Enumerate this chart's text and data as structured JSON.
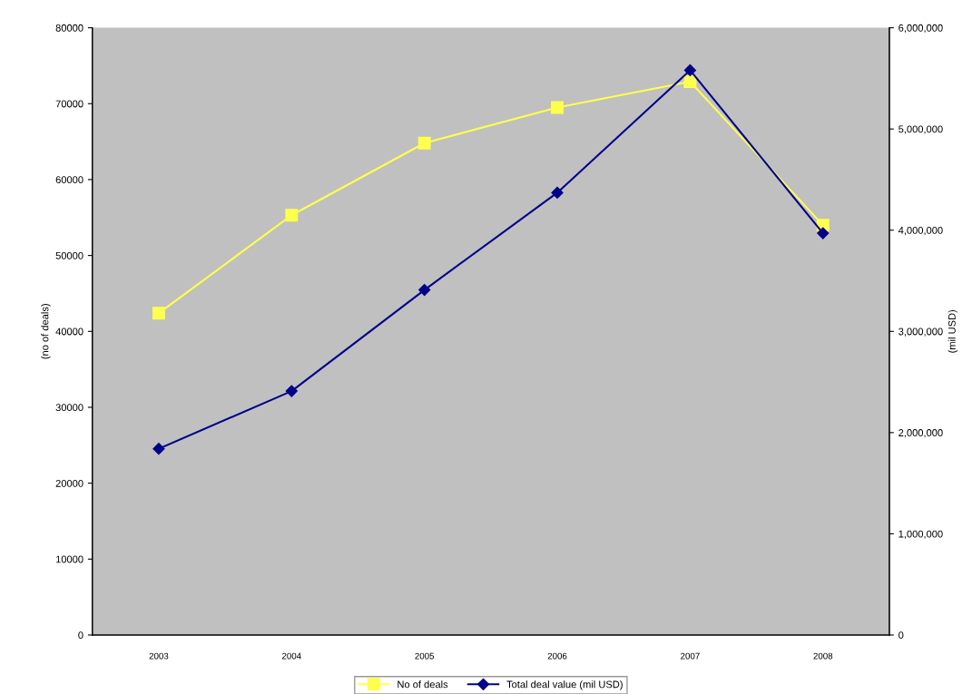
{
  "chart_data": {
    "type": "line",
    "ylabel": "(no of deals)",
    "y2label": "(mil USD)",
    "categories": [
      "2003",
      "2004",
      "2005",
      "2006",
      "2007",
      "2008"
    ],
    "series": [
      {
        "name": "No of deals",
        "color": "#ffff4d",
        "marker": "square",
        "values": [
          42400,
          55300,
          64800,
          69500,
          72900,
          54000
        ]
      },
      {
        "name": "Total deal value (mil USD)",
        "color": "#00008b",
        "marker": "diamond",
        "axis": "y2",
        "values": [
          1840000,
          2410000,
          3410000,
          4370000,
          5580000,
          3970000
        ]
      }
    ],
    "ylim": [
      0,
      80000
    ],
    "yticks": [
      0,
      10000,
      20000,
      30000,
      40000,
      50000,
      60000,
      70000,
      80000
    ],
    "y2lim": [
      0,
      6000000
    ],
    "y2ticks": [
      {
        "value": 0,
        "label": "0"
      },
      {
        "value": 1000000,
        "label": "1,000,000"
      },
      {
        "value": 2000000,
        "label": "2,000,000"
      },
      {
        "value": 3000000,
        "label": "3,000,000"
      },
      {
        "value": 4000000,
        "label": "4,000,000"
      },
      {
        "value": 5000000,
        "label": "5,000,000"
      },
      {
        "value": 6000000,
        "label": "6,000,000"
      }
    ],
    "grid": false,
    "legend": "bottom"
  }
}
